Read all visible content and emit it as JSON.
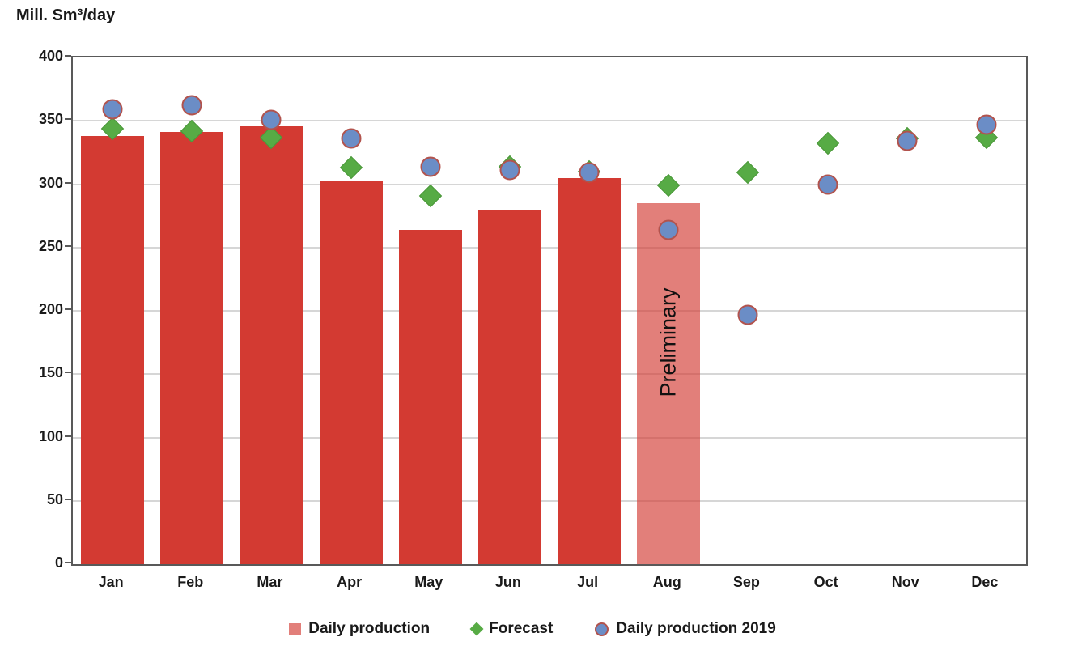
{
  "chart": {
    "y_axis_title": "Mill. Sm³/day",
    "preliminary_label": "Preliminary",
    "legend": [
      {
        "label": "Daily production",
        "marker": "square"
      },
      {
        "label": "Forecast",
        "marker": "diamond"
      },
      {
        "label": "Daily production 2019",
        "marker": "circle"
      }
    ],
    "colors": {
      "bar_red": "#d33a32",
      "bar_preliminary": "#d33a32a6",
      "forecast_green": "#57ab45",
      "circle_blue": "#6b8dc6",
      "circle_border": "#b2534d",
      "gridline": "#d6d6d6",
      "axis_border": "#595959"
    }
  },
  "chart_data": {
    "type": "bar",
    "title": "Mill. Sm³/day",
    "xlabel": "",
    "ylabel": "Mill. Sm³/day",
    "ylim": [
      0,
      400
    ],
    "ytick_step": 50,
    "grid": true,
    "legend_position": "bottom",
    "categories": [
      "Jan",
      "Feb",
      "Mar",
      "Apr",
      "May",
      "Jun",
      "Jul",
      "Aug",
      "Sep",
      "Oct",
      "Nov",
      "Dec"
    ],
    "series": [
      {
        "name": "Daily production",
        "type": "bar",
        "values": [
          338,
          341,
          346,
          303,
          264,
          280,
          305,
          285,
          null,
          null,
          null,
          null
        ],
        "preliminary_month": "Aug",
        "annotation": "Preliminary"
      },
      {
        "name": "Forecast",
        "type": "scatter",
        "marker": "diamond",
        "values": [
          344,
          342,
          337,
          313,
          291,
          314,
          310,
          299,
          309,
          332,
          336,
          337
        ]
      },
      {
        "name": "Daily production 2019",
        "type": "scatter",
        "marker": "circle",
        "values": [
          359,
          362,
          351,
          336,
          314,
          311,
          309,
          264,
          197,
          300,
          334,
          347
        ]
      }
    ]
  }
}
